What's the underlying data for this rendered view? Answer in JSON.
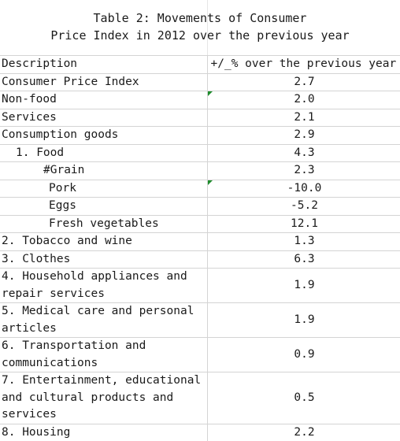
{
  "title": {
    "line1": "Table 2: Movements of Consumer",
    "line2": "Price Index in 2012 over the previous year"
  },
  "header": {
    "description": "Description",
    "change": "+/_% over the previous year"
  },
  "rows": [
    {
      "description": "Consumer Price Index",
      "value": "2.7"
    },
    {
      "description": "Non-food",
      "value": "2.0"
    },
    {
      "description": "Services",
      "value": "2.1"
    },
    {
      "description": "Consumption goods",
      "value": "2.9"
    },
    {
      "description": "1. Food",
      "value": "4.3"
    },
    {
      "description": "#Grain",
      "value": "2.3"
    },
    {
      "description": "Pork",
      "value": "-10.0"
    },
    {
      "description": "Eggs",
      "value": "-5.2"
    },
    {
      "description": "Fresh vegetables",
      "value": "12.1"
    },
    {
      "description": "2. Tobacco and wine",
      "value": "1.3"
    },
    {
      "description": "3. Clothes",
      "value": "6.3"
    },
    {
      "description": "4. Household appliances and repair services",
      "value": "1.9"
    },
    {
      "description": "5. Medical care and personal articles",
      "value": "1.9"
    },
    {
      "description": "6. Transportation and communications",
      "value": "0.9"
    },
    {
      "description": "7. Entertainment, educational and cultural products and services",
      "value": "0.5"
    },
    {
      "description": "8. Housing",
      "value": "2.2"
    }
  ],
  "colors": {
    "gridline": "#d4d4d4",
    "text": "#1a1a1a",
    "flag": "#1e8c2c"
  }
}
